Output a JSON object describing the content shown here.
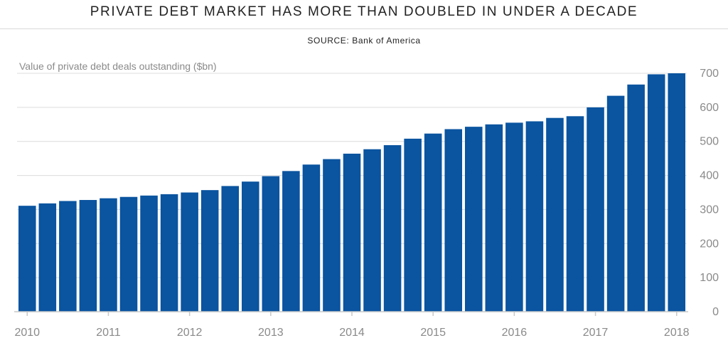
{
  "chart_data": {
    "type": "bar",
    "title": "PRIVATE DEBT MARKET HAS MORE THAN DOUBLED IN UNDER A DECADE",
    "subtitle": "SOURCE: Bank of America",
    "ylabel": "Value of private debt deals outstanding ($bn)",
    "xlabel": "",
    "ylim": [
      0,
      700
    ],
    "yticks": [
      0,
      100,
      200,
      300,
      400,
      500,
      600,
      700
    ],
    "y_axis_position": "right",
    "grid": true,
    "legend": "none",
    "bar_color": "#0a54a0",
    "x_tick_labels": [
      "2010",
      "2011",
      "2012",
      "2013",
      "2014",
      "2015",
      "2016",
      "2017",
      "2018"
    ],
    "x_tick_bar_index": [
      0,
      4,
      8,
      12,
      16,
      20,
      24,
      28,
      32
    ],
    "series": [
      {
        "values": [
          311,
          318,
          325,
          328,
          333,
          337,
          341,
          345,
          350,
          357,
          369,
          382,
          398,
          413,
          432,
          448,
          464,
          477,
          489,
          508,
          523,
          536,
          543,
          550,
          555,
          559,
          569,
          574,
          600,
          634,
          667,
          697,
          700
        ]
      }
    ]
  }
}
